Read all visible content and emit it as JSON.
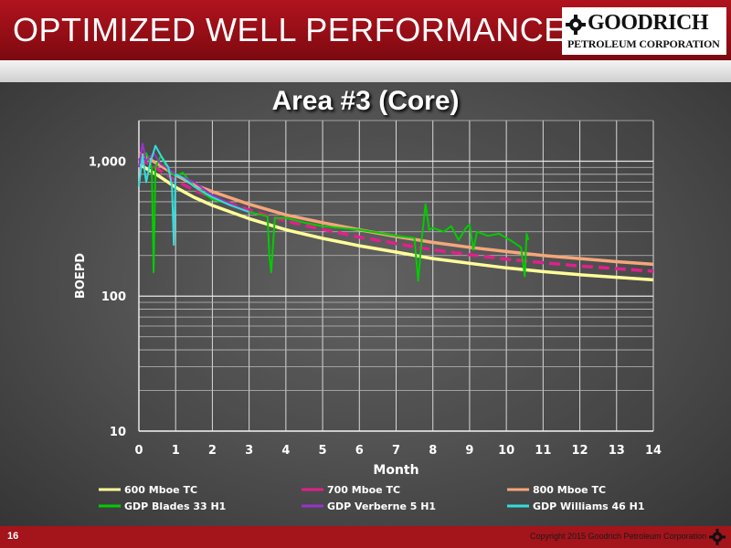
{
  "header": {
    "title": "OPTIMIZED WELL PERFORMANCE",
    "logo_main": "GOODRICH",
    "logo_sub": "PETROLEUM CORPORATION",
    "logo_icon": "gear-icon"
  },
  "footer": {
    "page_number": "16",
    "copyright": "Copyright 2015 Goodrich Petroleum Corporation"
  },
  "colors": {
    "header_red": "#a3141b",
    "series_600": "#ffff99",
    "series_700": "#e0218a",
    "series_800": "#f4a77a",
    "series_blades": "#00cc00",
    "series_verberne": "#9933cc",
    "series_williams": "#33dddd"
  },
  "chart_data": {
    "type": "line",
    "title": "Area #3 (Core)",
    "xlabel": "Month",
    "ylabel": "BOEPD",
    "xlim": [
      0,
      14
    ],
    "ylim": [
      10,
      2000
    ],
    "y_scale": "log",
    "grid": true,
    "legend_position": "bottom",
    "x_ticks": [
      "0",
      "1",
      "2",
      "3",
      "4",
      "5",
      "6",
      "7",
      "8",
      "9",
      "10",
      "11",
      "12",
      "13",
      "14"
    ],
    "y_ticks": [
      {
        "value": 10,
        "label": "10"
      },
      {
        "value": 100,
        "label": "100"
      },
      {
        "value": 1000,
        "label": "1,000"
      }
    ],
    "series": [
      {
        "name": "600 Mboe TC",
        "color": "#ffff99",
        "dash": "",
        "points": [
          [
            0,
            950
          ],
          [
            0.5,
            790
          ],
          [
            1,
            640
          ],
          [
            1.5,
            540
          ],
          [
            2,
            470
          ],
          [
            3,
            375
          ],
          [
            4,
            310
          ],
          [
            5,
            268
          ],
          [
            6,
            236
          ],
          [
            7,
            212
          ],
          [
            8,
            190
          ],
          [
            9,
            175
          ],
          [
            10,
            162
          ],
          [
            11,
            152
          ],
          [
            12,
            144
          ],
          [
            13,
            138
          ],
          [
            14,
            132
          ]
        ]
      },
      {
        "name": "700 Mboe TC",
        "color": "#e0218a",
        "dash": "12,6",
        "points": [
          [
            0,
            1050
          ],
          [
            0.5,
            880
          ],
          [
            1,
            720
          ],
          [
            1.5,
            610
          ],
          [
            2,
            540
          ],
          [
            3,
            435
          ],
          [
            4,
            360
          ],
          [
            5,
            312
          ],
          [
            6,
            274
          ],
          [
            7,
            245
          ],
          [
            8,
            220
          ],
          [
            9,
            203
          ],
          [
            10,
            188
          ],
          [
            11,
            177
          ],
          [
            12,
            167
          ],
          [
            13,
            160
          ],
          [
            14,
            153
          ]
        ]
      },
      {
        "name": "800 Mboe TC",
        "color": "#f4a77a",
        "dash": "",
        "points": [
          [
            0,
            1150
          ],
          [
            0.5,
            960
          ],
          [
            1,
            790
          ],
          [
            1.5,
            670
          ],
          [
            2,
            595
          ],
          [
            3,
            480
          ],
          [
            4,
            400
          ],
          [
            5,
            350
          ],
          [
            6,
            310
          ],
          [
            7,
            277
          ],
          [
            8,
            250
          ],
          [
            9,
            230
          ],
          [
            10,
            214
          ],
          [
            11,
            200
          ],
          [
            12,
            190
          ],
          [
            13,
            180
          ],
          [
            14,
            172
          ]
        ]
      },
      {
        "name": "GDP Blades 33 H1",
        "color": "#00cc00",
        "dash": "",
        "points": [
          [
            0,
            1000
          ],
          [
            0.2,
            1150
          ],
          [
            0.35,
            900
          ],
          [
            0.4,
            150
          ],
          [
            0.45,
            900
          ],
          [
            0.6,
            1100
          ],
          [
            0.8,
            850
          ],
          [
            1,
            780
          ],
          [
            1.2,
            820
          ],
          [
            1.5,
            650
          ],
          [
            2,
            520
          ],
          [
            2.5,
            480
          ],
          [
            3,
            420
          ],
          [
            3.5,
            390
          ],
          [
            3.55,
            200
          ],
          [
            3.6,
            150
          ],
          [
            3.7,
            380
          ],
          [
            4,
            380
          ],
          [
            4.5,
            350
          ],
          [
            5,
            330
          ],
          [
            5.5,
            320
          ],
          [
            6,
            310
          ],
          [
            6.5,
            295
          ],
          [
            7,
            280
          ],
          [
            7.5,
            270
          ],
          [
            7.6,
            130
          ],
          [
            7.7,
            270
          ],
          [
            7.8,
            480
          ],
          [
            7.9,
            310
          ],
          [
            8,
            320
          ],
          [
            8.3,
            300
          ],
          [
            8.5,
            330
          ],
          [
            8.7,
            260
          ],
          [
            8.9,
            320
          ],
          [
            9,
            340
          ],
          [
            9.1,
            220
          ],
          [
            9.2,
            300
          ],
          [
            9.5,
            280
          ],
          [
            9.8,
            290
          ],
          [
            10,
            270
          ],
          [
            10.2,
            250
          ],
          [
            10.4,
            230
          ],
          [
            10.5,
            140
          ],
          [
            10.55,
            290
          ],
          [
            10.6,
            260
          ]
        ]
      },
      {
        "name": "GDP Verberne 5 H1",
        "color": "#9933cc",
        "dash": "",
        "points": [
          [
            0,
            900
          ],
          [
            0.1,
            1350
          ],
          [
            0.2,
            1000
          ],
          [
            0.4,
            1150
          ],
          [
            0.6,
            950
          ],
          [
            0.8,
            880
          ],
          [
            1,
            800
          ],
          [
            1.2,
            760
          ],
          [
            1.5,
            700
          ],
          [
            2,
            560
          ],
          [
            2.5,
            480
          ],
          [
            3,
            420
          ]
        ]
      },
      {
        "name": "GDP Williams 46 H1",
        "color": "#33dddd",
        "dash": "",
        "points": [
          [
            0,
            650
          ],
          [
            0.1,
            1100
          ],
          [
            0.2,
            700
          ],
          [
            0.3,
            950
          ],
          [
            0.45,
            1300
          ],
          [
            0.6,
            1100
          ],
          [
            0.8,
            900
          ],
          [
            0.9,
            650
          ],
          [
            0.95,
            240
          ],
          [
            1,
            800
          ],
          [
            1.2,
            750
          ],
          [
            1.5,
            650
          ],
          [
            2,
            540
          ],
          [
            2.5,
            470
          ],
          [
            3,
            420
          ]
        ]
      }
    ]
  }
}
